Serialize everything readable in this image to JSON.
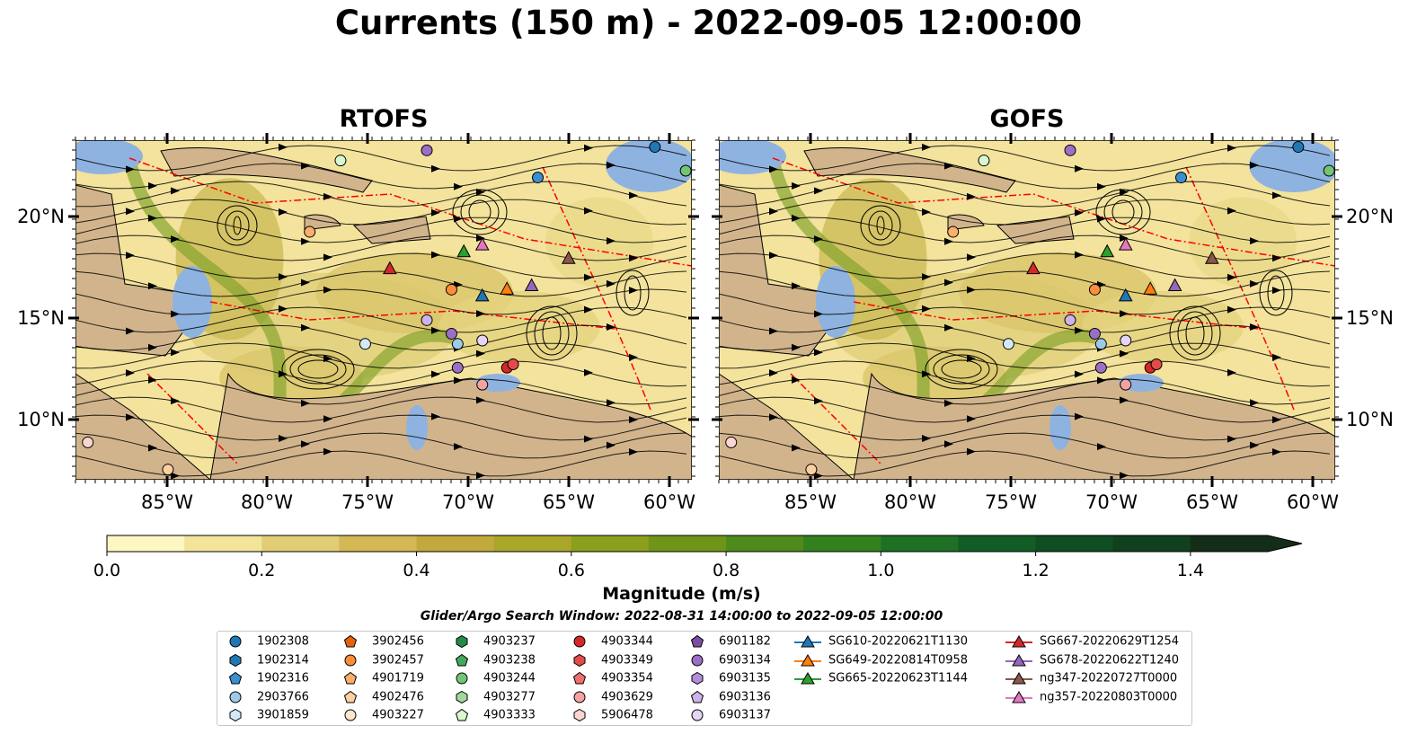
{
  "figure": {
    "title": "Currents (150 m) - 2022-09-05 12:00:00",
    "panels": [
      {
        "title": "RTOFS"
      },
      {
        "title": "GOFS"
      }
    ],
    "lat_ticks": [
      "20°N",
      "15°N",
      "10°N"
    ],
    "lon_ticks": [
      "85°W",
      "80°W",
      "75°W",
      "70°W",
      "65°W",
      "60°W"
    ],
    "colors": {
      "land": "#d2b48c",
      "shallow_water": "#8fb3e0",
      "eez_line": "#ff0000",
      "streamline": "#000000"
    }
  },
  "colorbar": {
    "label": "Magnitude (m/s)",
    "ticks": [
      "0.0",
      "0.2",
      "0.4",
      "0.6",
      "0.8",
      "1.0",
      "1.2",
      "1.4"
    ],
    "range": [
      0.0,
      1.5
    ],
    "colors": [
      "#fdf7c3",
      "#f2e49b",
      "#e2cd77",
      "#d3b855",
      "#c2a93e",
      "#a9a62a",
      "#8c9f1c",
      "#6f9518",
      "#4f8a1c",
      "#33801f",
      "#1d7024",
      "#125c25",
      "#0f4d22",
      "#11401f",
      "#142d18"
    ]
  },
  "search_window": "Glider/Argo Search Window: 2022-08-31 14:00:00 to 2022-09-05 12:00:00",
  "legend": {
    "columns": [
      [
        {
          "label": "1902308",
          "marker": "circle",
          "color": "#1f77b4"
        },
        {
          "label": "1902314",
          "marker": "hexagon",
          "color": "#1f77b4"
        },
        {
          "label": "1902316",
          "marker": "pentagon",
          "color": "#3a8fd0"
        },
        {
          "label": "2903766",
          "marker": "circle",
          "color": "#9ecae9"
        },
        {
          "label": "3901859",
          "marker": "hexagon",
          "color": "#d5e8f8"
        }
      ],
      [
        {
          "label": "3902456",
          "marker": "pentagon",
          "color": "#e8620c"
        },
        {
          "label": "3902457",
          "marker": "circle",
          "color": "#fd8d3c"
        },
        {
          "label": "4901719",
          "marker": "pentagon",
          "color": "#fdae6b"
        },
        {
          "label": "4902476",
          "marker": "pentagon",
          "color": "#fdd0a2"
        },
        {
          "label": "4903227",
          "marker": "circle",
          "color": "#fee6ce"
        }
      ],
      [
        {
          "label": "4903237",
          "marker": "hexagon",
          "color": "#238b45"
        },
        {
          "label": "4903238",
          "marker": "pentagon",
          "color": "#41ab5d"
        },
        {
          "label": "4903244",
          "marker": "circle",
          "color": "#74c476"
        },
        {
          "label": "4903277",
          "marker": "hexagon",
          "color": "#a1d99b"
        },
        {
          "label": "4903333",
          "marker": "pentagon",
          "color": "#d9f7d0"
        }
      ],
      [
        {
          "label": "4903344",
          "marker": "circle",
          "color": "#d62728"
        },
        {
          "label": "4903349",
          "marker": "hexagon",
          "color": "#e34a4a"
        },
        {
          "label": "4903354",
          "marker": "pentagon",
          "color": "#ef6f6f"
        },
        {
          "label": "4903629",
          "marker": "circle",
          "color": "#f4a3a0"
        },
        {
          "label": "5906478",
          "marker": "hexagon",
          "color": "#fcd5d2"
        }
      ],
      [
        {
          "label": "6901182",
          "marker": "pentagon",
          "color": "#7b4ea3"
        },
        {
          "label": "6903134",
          "marker": "circle",
          "color": "#9c6fc7"
        },
        {
          "label": "6903135",
          "marker": "hexagon",
          "color": "#b28ed8"
        },
        {
          "label": "6903136",
          "marker": "pentagon",
          "color": "#cdb3ea"
        },
        {
          "label": "6903137",
          "marker": "circle",
          "color": "#e6d5f6"
        }
      ],
      [
        {
          "label": "SG610-20220621T1130",
          "marker": "triangle",
          "color": "#1f77b4"
        },
        {
          "label": "SG649-20220814T0958",
          "marker": "triangle",
          "color": "#ff7f0e"
        },
        {
          "label": "SG665-20220623T1144",
          "marker": "triangle",
          "color": "#2ca02c"
        }
      ],
      [
        {
          "label": "SG667-20220629T1254",
          "marker": "triangle",
          "color": "#d62728"
        },
        {
          "label": "SG678-20220622T1240",
          "marker": "triangle",
          "color": "#9467bd"
        },
        {
          "label": "ng347-20220727T0000",
          "marker": "triangle",
          "color": "#8c564b"
        },
        {
          "label": "ng357-20220803T0000",
          "marker": "triangle",
          "color": "#e377c2"
        }
      ]
    ]
  }
}
